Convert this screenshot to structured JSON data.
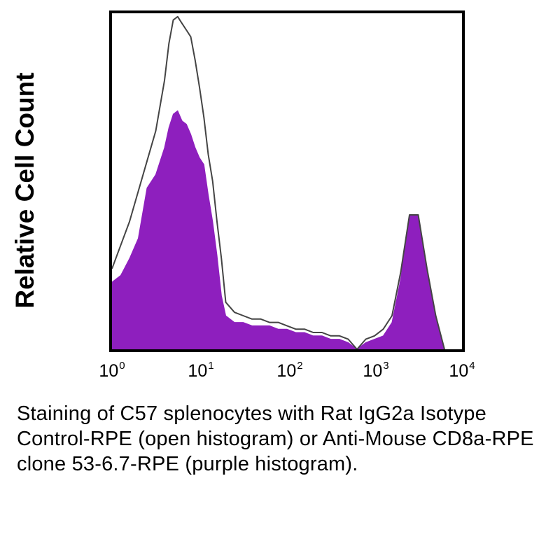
{
  "chart_data": {
    "type": "histogram",
    "ylabel": "Relative Cell Count",
    "xscale": "log",
    "xlim": [
      1,
      10000
    ],
    "x_ticks": [
      {
        "base": "10",
        "exp": "0"
      },
      {
        "base": "10",
        "exp": "1"
      },
      {
        "base": "10",
        "exp": "2"
      },
      {
        "base": "10",
        "exp": "3"
      },
      {
        "base": "10",
        "exp": "4"
      }
    ],
    "series": [
      {
        "name": "Rat IgG2a Isotype Control-RPE (open histogram)",
        "style": "open",
        "color": "#444444",
        "log10_x": [
          0.0,
          0.1,
          0.2,
          0.3,
          0.4,
          0.5,
          0.6,
          0.65,
          0.7,
          0.75,
          0.8,
          0.85,
          0.9,
          0.95,
          1.0,
          1.05,
          1.1,
          1.15,
          1.2,
          1.25,
          1.3,
          1.4,
          1.5,
          1.6,
          1.7,
          1.8,
          1.9,
          2.0,
          2.1,
          2.2,
          2.3,
          2.4,
          2.5,
          2.6,
          2.7,
          2.8,
          2.9,
          3.0,
          3.1,
          3.2,
          3.3,
          3.4,
          3.5,
          3.6,
          3.7,
          3.8
        ],
        "counts": [
          24,
          31,
          38,
          47,
          56,
          65,
          80,
          91,
          98,
          99,
          97,
          95,
          93,
          86,
          78,
          69,
          58,
          50,
          38,
          27,
          14,
          11,
          10,
          9,
          9,
          8,
          8,
          7,
          6,
          6,
          5,
          5,
          4,
          4,
          3,
          0,
          3,
          4,
          6,
          10,
          23,
          40,
          40,
          24,
          10,
          0
        ]
      },
      {
        "name": "Anti-Mouse CD8a-RPE clone 53-6.7-RPE (purple histogram)",
        "style": "filled",
        "color": "#8e1fbe",
        "log10_x": [
          0.0,
          0.1,
          0.2,
          0.3,
          0.4,
          0.5,
          0.6,
          0.65,
          0.7,
          0.75,
          0.8,
          0.85,
          0.9,
          0.95,
          1.0,
          1.05,
          1.1,
          1.15,
          1.2,
          1.25,
          1.3,
          1.4,
          1.5,
          1.6,
          1.7,
          1.8,
          1.9,
          2.0,
          2.1,
          2.2,
          2.3,
          2.4,
          2.5,
          2.6,
          2.7,
          2.8,
          2.9,
          3.0,
          3.1,
          3.2,
          3.3,
          3.4,
          3.5,
          3.6,
          3.7,
          3.8
        ],
        "counts": [
          20,
          22,
          27,
          33,
          48,
          52,
          60,
          66,
          70,
          71,
          68,
          67,
          64,
          60,
          57,
          55,
          46,
          38,
          28,
          16,
          10,
          8,
          8,
          7,
          7,
          7,
          6,
          6,
          5,
          5,
          4,
          4,
          3,
          3,
          2,
          0,
          2,
          3,
          4,
          8,
          21,
          40,
          40,
          24,
          10,
          0
        ]
      }
    ]
  },
  "caption": "Staining of C57 splenocytes with Rat IgG2a Isotype Control-RPE (open histogram) or Anti-Mouse CD8a-RPE clone 53-6.7-RPE (purple histogram)."
}
